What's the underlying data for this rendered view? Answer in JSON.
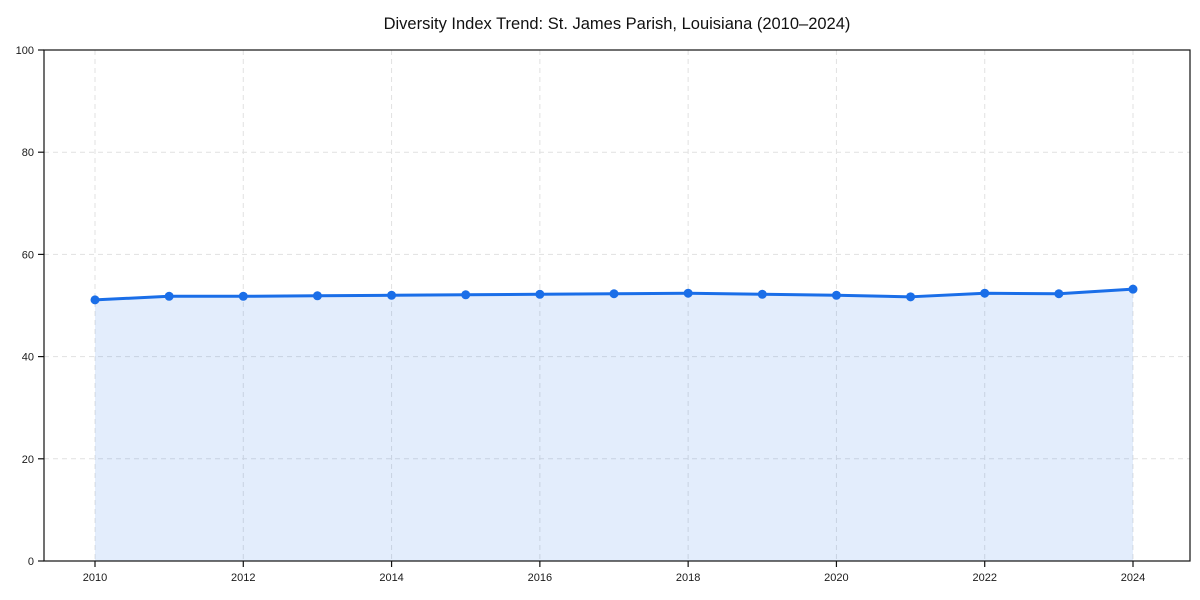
{
  "chart_data": {
    "type": "line",
    "title": "Diversity Index Trend: St. James Parish, Louisiana (2010–2024)",
    "x": [
      2010,
      2011,
      2012,
      2013,
      2014,
      2015,
      2016,
      2017,
      2018,
      2019,
      2020,
      2021,
      2022,
      2023,
      2024
    ],
    "values": [
      51.1,
      51.8,
      51.8,
      51.9,
      52.0,
      52.1,
      52.2,
      52.3,
      52.4,
      52.2,
      52.0,
      51.7,
      52.4,
      52.3,
      53.2
    ],
    "xlabel": "",
    "ylabel": "",
    "ylim": [
      0,
      100
    ],
    "yticks": [
      0,
      20,
      40,
      60,
      80,
      100
    ],
    "xticks": [
      2010,
      2012,
      2014,
      2016,
      2018,
      2020,
      2022,
      2024
    ],
    "grid": true,
    "grid_axes": "both",
    "legend": false,
    "marker": "circle",
    "area_fill": true,
    "colors": {
      "line": "#1a6ee8",
      "marker": "#1a6ee8",
      "fill": "rgba(26,110,232,0.12)",
      "grid": "#e1e1e1",
      "axis": "#111111",
      "text": "#1a1a1a",
      "background": "#ffffff"
    }
  }
}
